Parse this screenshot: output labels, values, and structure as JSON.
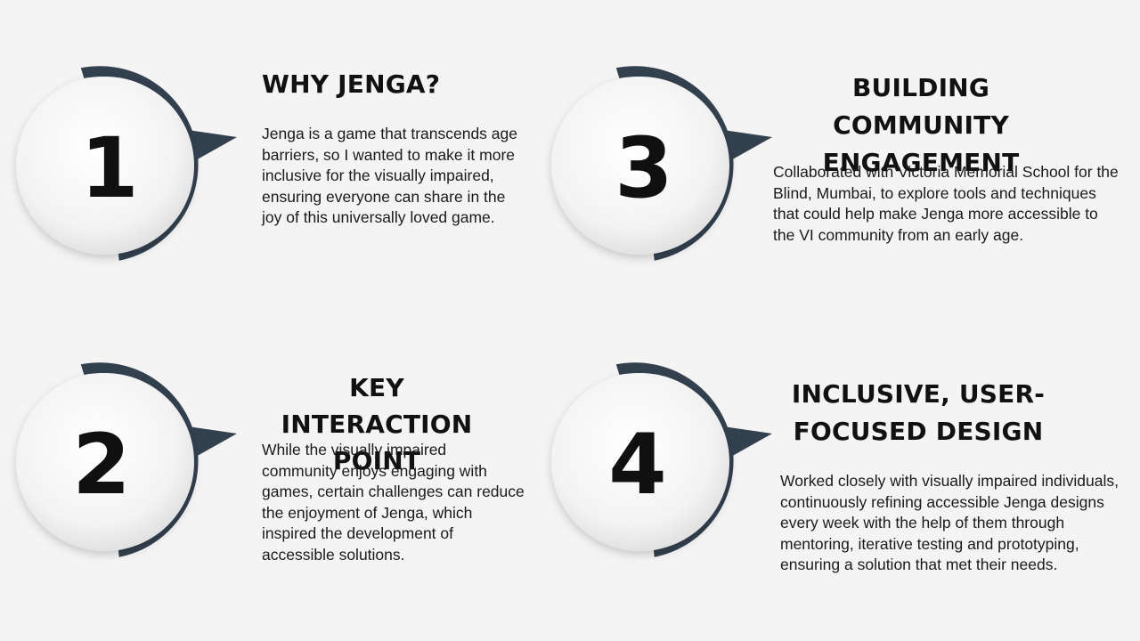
{
  "colors": {
    "background": "#f4f4f4",
    "arc": "#33414f",
    "circle": "#f7f7f7"
  },
  "steps": [
    {
      "number": "1",
      "title_lines": [
        "WHY JENGA?"
      ],
      "body": "Jenga is a game that transcends age barriers, so I wanted to make it more inclusive for the visually impaired, ensuring everyone can share in the joy of this universally loved game."
    },
    {
      "number": "2",
      "title_lines": [
        "KEY INTERACTION",
        "POINT"
      ],
      "body": "While the visually impaired community enjoys engaging with games, certain challenges can reduce the enjoyment of Jenga, which inspired the development of accessible solutions."
    },
    {
      "number": "3",
      "title_lines": [
        "BUILDING COMMUNITY",
        "ENGAGEMENT"
      ],
      "body": "Collaborated with Victoria Memorial School for the Blind, Mumbai, to explore tools and techniques that could help make Jenga more accessible to the VI community from an early age."
    },
    {
      "number": "4",
      "title_lines": [
        "INCLUSIVE, USER-",
        "FOCUSED DESIGN"
      ],
      "body": "Worked closely with visually impaired individuals, continuously refining accessible Jenga designs every week with the help of them through mentoring, iterative testing and prototyping, ensuring a solution that met their needs."
    }
  ]
}
